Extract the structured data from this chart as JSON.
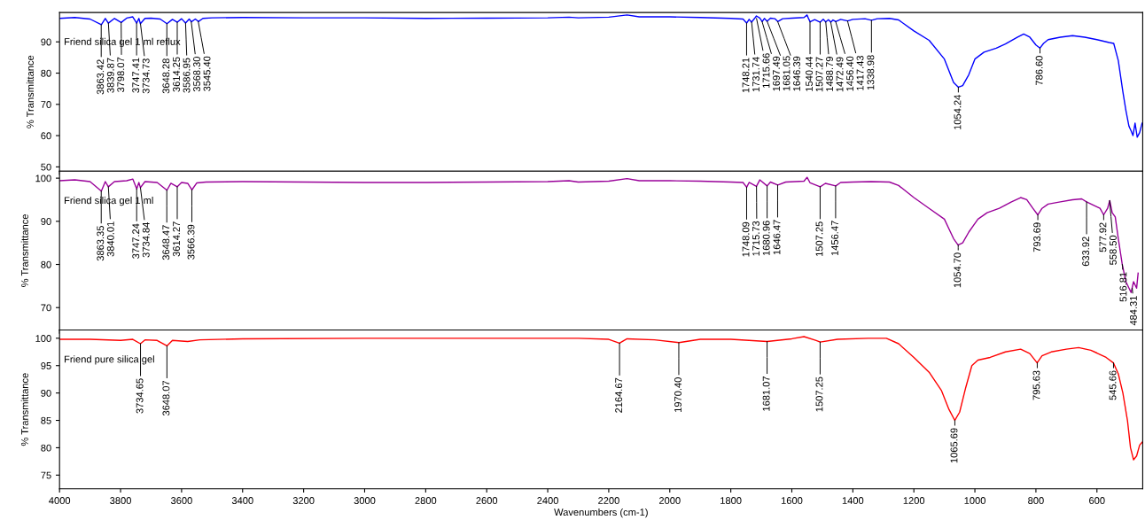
{
  "chart_data": [
    {
      "type": "line",
      "title": "Friend silica gel 1 ml reflux",
      "ylabel": "% Transmittance",
      "xlim": [
        4000,
        450
      ],
      "xticks": [
        4000,
        3800,
        3600,
        3400,
        3200,
        3000,
        2800,
        2600,
        2400,
        2200,
        2000,
        1800,
        1600,
        1400,
        1200,
        1000,
        800,
        600
      ],
      "ylim": [
        48.6,
        99.4
      ],
      "yticks": [
        50,
        60,
        70,
        80,
        90
      ],
      "tick_labels": "y",
      "grid": false,
      "x": [
        4000,
        3950,
        3900,
        3863,
        3850,
        3840,
        3820,
        3798,
        3780,
        3760,
        3747,
        3740,
        3735,
        3720,
        3700,
        3670,
        3648,
        3630,
        3614,
        3600,
        3587,
        3575,
        3568,
        3555,
        3545,
        3530,
        3500,
        3400,
        3200,
        3000,
        2800,
        2600,
        2400,
        2330,
        2300,
        2200,
        2140,
        2100,
        2000,
        1900,
        1800,
        1760,
        1748,
        1740,
        1732,
        1722,
        1716,
        1705,
        1697,
        1690,
        1681,
        1670,
        1655,
        1646,
        1630,
        1600,
        1560,
        1550,
        1545,
        1540,
        1525,
        1507,
        1497,
        1489,
        1480,
        1472,
        1465,
        1456,
        1440,
        1417,
        1400,
        1360,
        1339,
        1320,
        1280,
        1250,
        1200,
        1150,
        1100,
        1070,
        1054,
        1040,
        1020,
        1000,
        970,
        930,
        900,
        860,
        840,
        820,
        800,
        787,
        775,
        760,
        720,
        680,
        640,
        600,
        560,
        545,
        530,
        515,
        505,
        495,
        488,
        482,
        475,
        468,
        460,
        452
      ],
      "series": [
        {
          "color": "#0000ff",
          "values": [
            97.5,
            97.8,
            97.3,
            95.5,
            97.5,
            96,
            97.5,
            96.2,
            97.6,
            98,
            96,
            97.5,
            95.8,
            97.5,
            97.6,
            97.3,
            95.8,
            97.2,
            96.3,
            97.4,
            96,
            97.3,
            96.4,
            97.3,
            96.5,
            97.5,
            97.7,
            97.8,
            97.7,
            97.7,
            97.5,
            97.6,
            97.7,
            97.9,
            97.7,
            97.9,
            98.6,
            98,
            98,
            97.8,
            97.5,
            97.3,
            96,
            97.2,
            96.3,
            97.5,
            98.3,
            97.6,
            96.5,
            97.5,
            96.6,
            97.6,
            97.4,
            96.5,
            97.4,
            97.6,
            97.8,
            98.6,
            97.4,
            96.4,
            97.1,
            96.3,
            97.2,
            96.4,
            97.1,
            96.3,
            97,
            96.5,
            97.2,
            96.7,
            97.2,
            97.4,
            96.9,
            97.4,
            97.5,
            97,
            93.5,
            90.5,
            84.5,
            77,
            75.5,
            76,
            79.5,
            84.5,
            86.7,
            88,
            89.3,
            91.5,
            92.5,
            91.5,
            89,
            88,
            89.5,
            90.7,
            91.5,
            92,
            91.5,
            90.7,
            89.8,
            89.5,
            84,
            74,
            68,
            63,
            61.5,
            60,
            64,
            59.5,
            61,
            64
          ]
        }
      ],
      "annotations": [
        {
          "text": "3863.42",
          "x": 3863.42,
          "y": 95.5
        },
        {
          "text": "3839.87",
          "x": 3839.87,
          "y": 96
        },
        {
          "text": "3798.07",
          "x": 3798.07,
          "y": 96.2
        },
        {
          "text": "3747.41",
          "x": 3747.41,
          "y": 96
        },
        {
          "text": "3734.73",
          "x": 3734.73,
          "y": 95.8
        },
        {
          "text": "3648.28",
          "x": 3648.28,
          "y": 95.8
        },
        {
          "text": "3614.25",
          "x": 3614.25,
          "y": 96.3
        },
        {
          "text": "3586.95",
          "x": 3586.95,
          "y": 96
        },
        {
          "text": "3568.30",
          "x": 3568.3,
          "y": 96.4
        },
        {
          "text": "3545.40",
          "x": 3545.4,
          "y": 96.5
        },
        {
          "text": "1748.21",
          "x": 1748.21,
          "y": 96
        },
        {
          "text": "1731.74",
          "x": 1731.74,
          "y": 96.3
        },
        {
          "text": "1715.66",
          "x": 1715.66,
          "y": 97.5
        },
        {
          "text": "1697.49",
          "x": 1697.49,
          "y": 96.5
        },
        {
          "text": "1681.05",
          "x": 1681.05,
          "y": 96.6
        },
        {
          "text": "1646.39",
          "x": 1646.39,
          "y": 96.5
        },
        {
          "text": "1540.44",
          "x": 1540.44,
          "y": 96.4
        },
        {
          "text": "1507.27",
          "x": 1507.27,
          "y": 96.3
        },
        {
          "text": "1488.79",
          "x": 1488.79,
          "y": 96.4
        },
        {
          "text": "1472.49",
          "x": 1472.49,
          "y": 96.3
        },
        {
          "text": "1456.40",
          "x": 1456.4,
          "y": 96.5
        },
        {
          "text": "1417.43",
          "x": 1417.43,
          "y": 96.7
        },
        {
          "text": "1338.98",
          "x": 1338.98,
          "y": 96.9
        },
        {
          "text": "1054.24",
          "x": 1054.24,
          "y": 75.5
        },
        {
          "text": "786.60",
          "x": 786.6,
          "y": 88
        }
      ]
    },
    {
      "type": "line",
      "title": "Friend silica gel 1 ml",
      "ylabel": "% Transmittance",
      "xlim": [
        4000,
        450
      ],
      "xticks": [
        4000,
        3800,
        3600,
        3400,
        3200,
        3000,
        2800,
        2600,
        2400,
        2200,
        2000,
        1800,
        1600,
        1400,
        1200,
        1000,
        800,
        600
      ],
      "ylim": [
        64.8,
        101.6
      ],
      "yticks": [
        70,
        80,
        90,
        100
      ],
      "tick_labels": "y",
      "grid": false,
      "x": [
        4000,
        3950,
        3900,
        3863,
        3850,
        3840,
        3820,
        3780,
        3760,
        3747,
        3740,
        3735,
        3720,
        3680,
        3648,
        3635,
        3614,
        3600,
        3580,
        3566,
        3550,
        3520,
        3400,
        3200,
        3000,
        2800,
        2600,
        2400,
        2330,
        2300,
        2200,
        2140,
        2100,
        2000,
        1900,
        1800,
        1760,
        1748,
        1740,
        1716,
        1705,
        1681,
        1670,
        1646,
        1620,
        1560,
        1550,
        1540,
        1507,
        1490,
        1456,
        1440,
        1400,
        1340,
        1280,
        1250,
        1200,
        1150,
        1100,
        1070,
        1055,
        1040,
        1020,
        990,
        960,
        920,
        880,
        850,
        830,
        810,
        794,
        780,
        760,
        720,
        680,
        650,
        634,
        610,
        590,
        578,
        565,
        558,
        550,
        540,
        530,
        517,
        505,
        495,
        488,
        480,
        470,
        465
      ],
      "series": [
        {
          "color": "#990099",
          "values": [
            99.4,
            99.6,
            99.2,
            97,
            99.2,
            98,
            99.2,
            99.4,
            99.8,
            97.5,
            99,
            97.8,
            99.2,
            99,
            97.2,
            98.8,
            98,
            99,
            98.8,
            97.3,
            98.9,
            99.1,
            99.2,
            99.1,
            99,
            99,
            99.1,
            99.2,
            99.4,
            99.1,
            99.3,
            99.9,
            99.4,
            99.4,
            99.3,
            99.1,
            99,
            97.9,
            99,
            98.1,
            99.6,
            98.2,
            99.1,
            98.4,
            99.1,
            99.3,
            100.2,
            98.9,
            98,
            98.8,
            98.2,
            99,
            99.1,
            99.2,
            99.1,
            98.3,
            95.5,
            93,
            90.5,
            86,
            84.5,
            85,
            87.5,
            90.5,
            92,
            93,
            94.5,
            95.5,
            95,
            93,
            91.5,
            93,
            94,
            94.5,
            95,
            95.2,
            94.5,
            93.7,
            93,
            91.5,
            93,
            94.8,
            92,
            91,
            86,
            80,
            76,
            74.5,
            73.5,
            76,
            74.5,
            78
          ]
        }
      ],
      "annotations": [
        {
          "text": "3863.35",
          "x": 3863.35,
          "y": 97
        },
        {
          "text": "3840.01",
          "x": 3840.01,
          "y": 98
        },
        {
          "text": "3747.24",
          "x": 3747.24,
          "y": 97.5
        },
        {
          "text": "3734.84",
          "x": 3734.84,
          "y": 97.8
        },
        {
          "text": "3648.47",
          "x": 3648.47,
          "y": 97.2
        },
        {
          "text": "3614.27",
          "x": 3614.27,
          "y": 98
        },
        {
          "text": "3566.39",
          "x": 3566.39,
          "y": 97.3
        },
        {
          "text": "1748.09",
          "x": 1748.09,
          "y": 97.9
        },
        {
          "text": "1715.73",
          "x": 1715.73,
          "y": 98.1
        },
        {
          "text": "1680.96",
          "x": 1680.96,
          "y": 98.2
        },
        {
          "text": "1646.47",
          "x": 1646.47,
          "y": 98.4
        },
        {
          "text": "1507.25",
          "x": 1507.25,
          "y": 98
        },
        {
          "text": "1456.47",
          "x": 1456.47,
          "y": 98.2
        },
        {
          "text": "1054.70",
          "x": 1054.7,
          "y": 84.5
        },
        {
          "text": "793.69",
          "x": 793.69,
          "y": 91.5
        },
        {
          "text": "633.92",
          "x": 633.92,
          "y": 94.5
        },
        {
          "text": "577.92",
          "x": 577.92,
          "y": 91.5
        },
        {
          "text": "558.50",
          "x": 558.5,
          "y": 94.8
        },
        {
          "text": "516.81",
          "x": 516.81,
          "y": 80
        },
        {
          "text": "484.31",
          "x": 484.31,
          "y": 74.5
        }
      ]
    },
    {
      "type": "line",
      "title": "Friend pure silica gel",
      "ylabel": "% Transmittance",
      "xlabel": "Wavenumbers (cm-1)",
      "xlim": [
        4000,
        450
      ],
      "xticks": [
        4000,
        3800,
        3600,
        3400,
        3200,
        3000,
        2800,
        2600,
        2400,
        2200,
        2000,
        1800,
        1600,
        1400,
        1200,
        1000,
        800,
        600
      ],
      "ylim": [
        72.5,
        101.5
      ],
      "yticks": [
        75,
        80,
        85,
        90,
        95,
        100
      ],
      "grid": false,
      "x": [
        4000,
        3900,
        3800,
        3760,
        3735,
        3720,
        3680,
        3648,
        3630,
        3580,
        3540,
        3400,
        3000,
        2600,
        2300,
        2200,
        2165,
        2140,
        2050,
        1970,
        1900,
        1800,
        1681,
        1600,
        1560,
        1520,
        1507,
        1450,
        1350,
        1290,
        1250,
        1200,
        1150,
        1110,
        1085,
        1066,
        1050,
        1030,
        1010,
        990,
        950,
        900,
        850,
        820,
        796,
        780,
        750,
        700,
        660,
        620,
        600,
        570,
        546,
        530,
        515,
        500,
        490,
        480,
        470,
        460,
        452
      ],
      "series": [
        {
          "color": "#ff0000",
          "values": [
            99.8,
            99.8,
            99.6,
            99.8,
            99.0,
            99.7,
            99.6,
            98.6,
            99.6,
            99.4,
            99.7,
            99.9,
            100,
            100,
            100,
            99.8,
            99.1,
            99.9,
            99.7,
            99.2,
            99.8,
            99.8,
            99.4,
            99.9,
            100.3,
            99.6,
            99.3,
            99.8,
            100,
            100,
            99,
            96.5,
            93.8,
            90.5,
            87,
            85,
            86.5,
            91,
            95,
            96,
            96.5,
            97.5,
            98,
            97.2,
            95.5,
            96.8,
            97.5,
            98,
            98.3,
            97.8,
            97.3,
            96.5,
            95.5,
            93.5,
            90,
            85,
            80,
            77.8,
            78.5,
            80.5,
            81
          ]
        }
      ],
      "annotations": [
        {
          "text": "3734.65",
          "x": 3734.65,
          "y": 99
        },
        {
          "text": "3648.07",
          "x": 3648.07,
          "y": 98.6
        },
        {
          "text": "2164.67",
          "x": 2164.67,
          "y": 99.1
        },
        {
          "text": "1970.40",
          "x": 1970.4,
          "y": 99.2
        },
        {
          "text": "1681.07",
          "x": 1681.07,
          "y": 99.4
        },
        {
          "text": "1507.25",
          "x": 1507.25,
          "y": 99.3
        },
        {
          "text": "1065.69",
          "x": 1065.69,
          "y": 85
        },
        {
          "text": "795.63",
          "x": 795.63,
          "y": 95.5
        },
        {
          "text": "545.66",
          "x": 545.66,
          "y": 95.5
        }
      ]
    }
  ]
}
